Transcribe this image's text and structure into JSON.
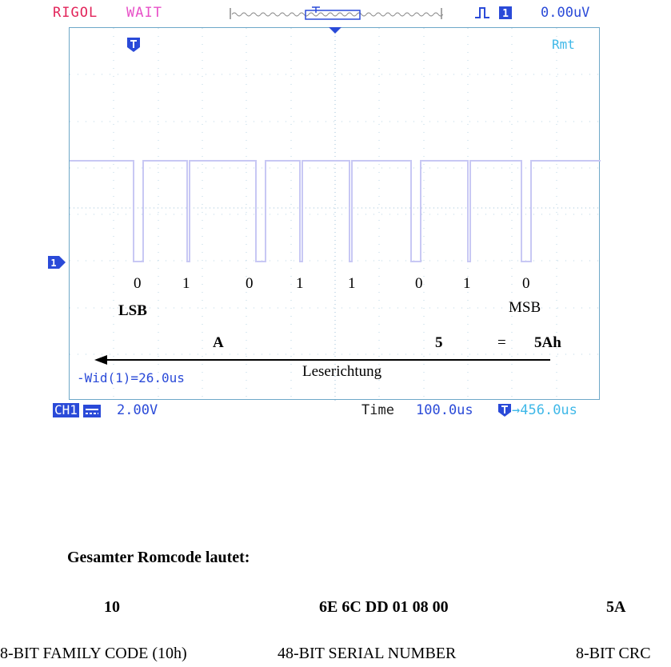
{
  "scope": {
    "brand": "RIGOL",
    "status": "WAIT",
    "trigger_level": "0.00uV",
    "remote": "Rmt",
    "trigger_marker": "T",
    "channel_marker": "1",
    "pulse_width": "-Wid(1)=26.0us",
    "ch1_badge": "CH1",
    "ch1_scale": "2.00V",
    "timebase_label": "Time",
    "timebase_value": "100.0us",
    "trigger_position": "456.0us",
    "trace_color": "#c8c8f4",
    "grid_color": "#6ea8c8"
  },
  "decode": {
    "bits": [
      "0",
      "1",
      "0",
      "1",
      "1",
      "0",
      "1",
      "0"
    ],
    "lsb_label": "LSB",
    "msb_label": "MSB",
    "nibble_low": "A",
    "nibble_high": "5",
    "equals": "=",
    "hex_value": "5Ah",
    "direction_label": "Leserichtung"
  },
  "romcode": {
    "title": "Gesamter Romcode lautet:",
    "family_value": "10",
    "serial_value": "6E 6C DD 01 08 00",
    "crc_value": "5A",
    "family_label": "8-BIT FAMILY CODE (10h)",
    "serial_label": "48-BIT SERIAL NUMBER",
    "crc_label": "8-BIT CRC"
  }
}
